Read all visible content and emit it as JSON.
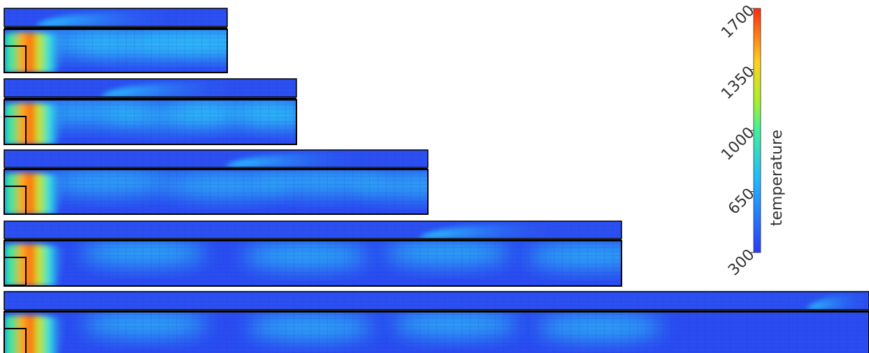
{
  "colorbar": {
    "label": "temperature",
    "range": [
      300,
      1700
    ],
    "ticks": [
      300,
      650,
      1000,
      1350,
      1700
    ]
  }
}
